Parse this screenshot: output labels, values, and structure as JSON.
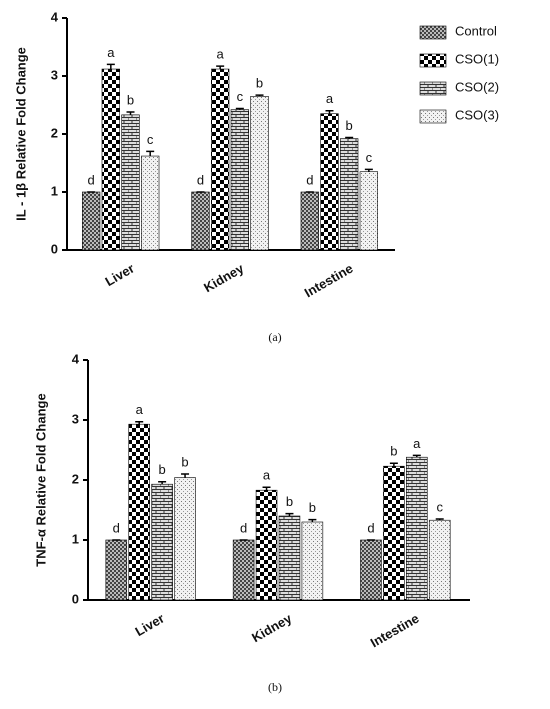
{
  "chart_data": [
    {
      "type": "bar",
      "ylabel": "IL - 1β Relative Fold Change",
      "caption": "(a)",
      "categories": [
        "Liver",
        "Kidney",
        "Intestine"
      ],
      "ylim": [
        0,
        4
      ],
      "yticks": [
        0,
        1,
        2,
        3,
        4
      ],
      "legend": "right",
      "series": [
        {
          "name": "Control",
          "pattern": "fine-checker",
          "values": [
            1,
            1,
            1
          ],
          "errors": [
            0,
            0,
            0
          ],
          "letters": [
            "d",
            "d",
            "d"
          ]
        },
        {
          "name": "CSO(1)",
          "pattern": "checker",
          "values": [
            3.12,
            3.12,
            2.35
          ],
          "errors": [
            0.08,
            0.05,
            0.05
          ],
          "letters": [
            "a",
            "a",
            "a"
          ]
        },
        {
          "name": "CSO(2)",
          "pattern": "brick",
          "values": [
            2.33,
            2.42,
            1.92
          ],
          "errors": [
            0.05,
            0.02,
            0.02
          ],
          "letters": [
            "b",
            "c",
            "b"
          ]
        },
        {
          "name": "CSO(3)",
          "pattern": "dots",
          "values": [
            1.62,
            2.65,
            1.35
          ],
          "errors": [
            0.08,
            0.02,
            0.04
          ],
          "letters": [
            "c",
            "b",
            "c"
          ]
        }
      ]
    },
    {
      "type": "bar",
      "ylabel": "TNF-α Relative Fold Change",
      "caption": "(b)",
      "categories": [
        "Liver",
        "Kidney",
        "Intestine"
      ],
      "ylim": [
        0,
        4
      ],
      "yticks": [
        0,
        1,
        2,
        3,
        4
      ],
      "series": [
        {
          "pattern": "fine-checker",
          "values": [
            1,
            1,
            1
          ],
          "errors": [
            0,
            0,
            0
          ],
          "letters": [
            "d",
            "d",
            "d"
          ]
        },
        {
          "pattern": "checker",
          "values": [
            2.93,
            1.83,
            2.23
          ],
          "errors": [
            0.04,
            0.05,
            0.05
          ],
          "letters": [
            "a",
            "a",
            "b"
          ]
        },
        {
          "pattern": "brick",
          "values": [
            1.93,
            1.4,
            2.38
          ],
          "errors": [
            0.04,
            0.04,
            0.03
          ],
          "letters": [
            "b",
            "b",
            "a"
          ]
        },
        {
          "pattern": "dots",
          "values": [
            2.04,
            1.3,
            1.33
          ],
          "errors": [
            0.06,
            0.04,
            0.02
          ],
          "letters": [
            "b",
            "b",
            "c"
          ]
        }
      ]
    }
  ]
}
